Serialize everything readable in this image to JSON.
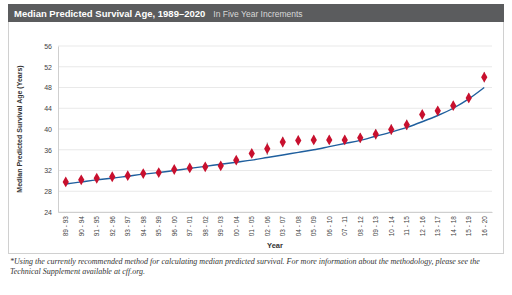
{
  "chart_data": {
    "type": "scatter",
    "title": "Median Predicted Survival Age, 1989–2020",
    "subtitle": "In Five Year Increments",
    "x_label": "Year",
    "y_label": "Median Predicted Survival Age (Years)",
    "footnote": "*Using the currently recommended method for calculating median predicted survival. For more information about the methodology, please see the Technical Supplement available at cff.org.",
    "categories": [
      "89 - 93",
      "90 - 94",
      "91 - 95",
      "92 - 96",
      "93 - 97",
      "94 - 98",
      "95 - 99",
      "96 - 00",
      "97 - 01",
      "98 - 02",
      "99 - 03",
      "00 - 04",
      "01 - 05",
      "02 - 06",
      "03 - 07",
      "04 - 08",
      "05 - 09",
      "06 - 10",
      "07 - 11",
      "08 - 12",
      "09 - 13",
      "10 - 14",
      "11 - 15",
      "12 - 16",
      "13 - 17",
      "14 - 18",
      "15 - 19",
      "16 - 20"
    ],
    "series": [
      {
        "type": "scatter",
        "marker": "diamond",
        "color": "#c8102e",
        "values": [
          29.8,
          30.2,
          30.5,
          30.8,
          31.0,
          31.4,
          31.6,
          32.2,
          32.5,
          32.7,
          32.9,
          34.0,
          35.3,
          36.2,
          37.5,
          37.8,
          37.9,
          37.9,
          37.9,
          38.3,
          39.0,
          39.9,
          40.8,
          42.8,
          43.5,
          44.5,
          46.0,
          50.0
        ],
        "errors": [
          0.4,
          0.4,
          0.4,
          0.4,
          0.4,
          0.4,
          0.4,
          0.4,
          0.4,
          0.4,
          0.5,
          0.8,
          0.8,
          1.2,
          1.0,
          0.9,
          0.8,
          0.8,
          0.8,
          0.9,
          1.0,
          1.0,
          1.0,
          0.8,
          0.8,
          0.8,
          0.9,
          1.0
        ]
      },
      {
        "type": "line",
        "line_style": "solid",
        "color": "#1f5f9e",
        "values": [
          29.4,
          29.8,
          30.2,
          30.5,
          30.9,
          31.3,
          31.6,
          32.0,
          32.4,
          32.8,
          33.2,
          33.6,
          34.0,
          34.5,
          35.0,
          35.5,
          36.0,
          36.6,
          37.2,
          37.8,
          38.6,
          39.4,
          40.3,
          41.4,
          42.6,
          44.0,
          45.8,
          48.0
        ]
      }
    ],
    "ylim": [
      24,
      56
    ],
    "yticks": [
      24,
      28,
      32,
      36,
      40,
      44,
      48,
      52,
      56
    ],
    "grid": true
  }
}
